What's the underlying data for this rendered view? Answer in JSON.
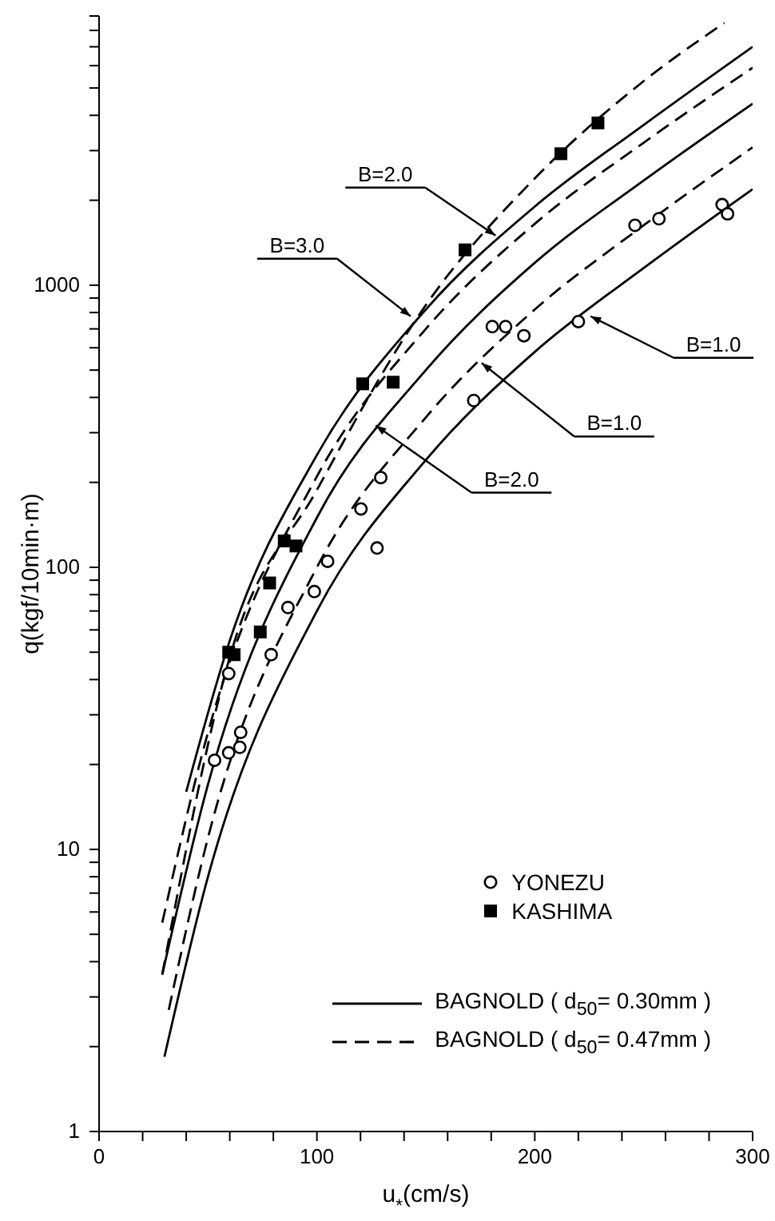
{
  "chart_data": {
    "type": "line",
    "log": "y",
    "xlabel": "u$_{*}$(cm/s)",
    "ylabel": "q(kgf/10min·m)",
    "xlim": [
      0,
      300
    ],
    "xticks": [
      0,
      {
        "value": 20,
        "label": null
      },
      {
        "value": 40,
        "label": null
      },
      {
        "value": 60,
        "label": null
      },
      {
        "value": 80,
        "label": null
      },
      100,
      {
        "value": 120,
        "label": null
      },
      {
        "value": 140,
        "label": null
      },
      {
        "value": 160,
        "label": null
      },
      {
        "value": 180,
        "label": null
      },
      200,
      {
        "value": 220,
        "label": null
      },
      {
        "value": 240,
        "label": null
      },
      {
        "value": 260,
        "label": null
      },
      {
        "value": 280,
        "label": null
      },
      300
    ],
    "ylim": [
      1,
      9000
    ],
    "yticks": [
      1,
      {
        "value": 2,
        "label": null
      },
      {
        "value": 3,
        "label": null
      },
      {
        "value": 4,
        "label": null
      },
      {
        "value": 5,
        "label": null
      },
      {
        "value": 6,
        "label": null
      },
      {
        "value": 7,
        "label": null
      },
      {
        "value": 8,
        "label": null
      },
      {
        "value": 9,
        "label": null
      },
      10,
      {
        "value": 20,
        "label": null
      },
      {
        "value": 30,
        "label": null
      },
      {
        "value": 40,
        "label": null
      },
      {
        "value": 50,
        "label": null
      },
      {
        "value": 60,
        "label": null
      },
      {
        "value": 70,
        "label": null
      },
      {
        "value": 80,
        "label": null
      },
      {
        "value": 90,
        "label": null
      },
      100,
      {
        "value": 200,
        "label": null
      },
      {
        "value": 300,
        "label": null
      },
      {
        "value": 400,
        "label": null
      },
      {
        "value": 500,
        "label": null
      },
      {
        "value": 600,
        "label": null
      },
      {
        "value": 700,
        "label": null
      },
      {
        "value": 800,
        "label": null
      },
      {
        "value": 900,
        "label": null
      },
      1000,
      {
        "value": 2000,
        "label": null
      },
      {
        "value": 3000,
        "label": null
      },
      {
        "value": 4000,
        "label": null
      },
      {
        "value": 5000,
        "label": null
      },
      {
        "value": 6000,
        "label": null
      },
      {
        "value": 7000,
        "label": null
      },
      {
        "value": 8000,
        "label": null
      },
      {
        "value": 9000,
        "label": null
      }
    ],
    "legend": "bottom right",
    "series": [
      {
        "name": "YONEZU",
        "type": "scatter",
        "marker": "circle",
        "color": "#000000",
        "x": [
          53,
          59.5,
          64.6,
          65,
          59.5,
          79,
          86.7,
          98.8,
          104.9,
          127.6,
          120.2,
          129.3,
          172,
          180.5,
          186.6,
          195,
          220,
          246,
          257,
          286,
          288.5
        ],
        "values": [
          20.7,
          22,
          23,
          26,
          42,
          49,
          72,
          82,
          105,
          117,
          161,
          208,
          390,
          713,
          713,
          662,
          743,
          1630,
          1720,
          1930,
          1790
        ]
      },
      {
        "name": "KASHIMA",
        "type": "scatter",
        "marker": "square",
        "color": "#000000",
        "x": [
          59.5,
          62,
          74,
          78.3,
          85,
          90.4,
          121,
          135,
          168,
          212,
          229
        ],
        "values": [
          50,
          49,
          59,
          88,
          124,
          119,
          447,
          453,
          1334,
          2924,
          3760
        ]
      },
      {
        "name": "BAGNOLD ( d$_{50}$= 0.30mm )",
        "line_style": "solid",
        "color": "#000000",
        "x": [
          40,
          60,
          100,
          150,
          200,
          250,
          300
        ],
        "values": [
          16,
          55,
          250,
          820,
          1900,
          3700,
          7000
        ]
      },
      {
        "line_style": "solid",
        "color": "#000000",
        "x": [
          29,
          50,
          100,
          150,
          200,
          250,
          300
        ],
        "values": [
          3.6,
          17,
          150,
          500,
          1200,
          2350,
          4400
        ]
      },
      {
        "line_style": "solid",
        "color": "#000000",
        "x": [
          30,
          50,
          100,
          150,
          200,
          250,
          300
        ],
        "values": [
          1.84,
          8,
          70,
          240,
          580,
          1150,
          2190
        ]
      },
      {
        "name": "BAGNOLD ( d$_{50}$= 0.47mm )",
        "line_style": "dashed",
        "color": "#000000",
        "x": [
          29,
          50,
          100,
          150,
          200,
          250,
          300
        ],
        "values": [
          5.5,
          26,
          210,
          700,
          1650,
          3200,
          5900
        ]
      },
      {
        "line_style": "dashed",
        "color": "#000000",
        "x": [
          32,
          50,
          100,
          150,
          200,
          250,
          300
        ],
        "values": [
          2.7,
          11,
          100,
          340,
          820,
          1630,
          3080
        ]
      },
      {
        "line_style": "dashed",
        "color": "#000000",
        "x": [
          29,
          60,
          100,
          150,
          200,
          250,
          287
        ],
        "values": [
          3.6,
          48,
          188,
          850,
          2390,
          5290,
          8500
        ]
      }
    ],
    "annotations": [
      {
        "text": "B=2.0",
        "x": 182,
        "y": 1500
      },
      {
        "text": "B=3.0",
        "x": 143,
        "y": 776
      },
      {
        "text": "B=1.0",
        "x": 225.6,
        "y": 776
      },
      {
        "text": "B=1.0",
        "x": 175.6,
        "y": 530
      },
      {
        "text": "B=2.0",
        "x": 127,
        "y": 318
      }
    ]
  }
}
